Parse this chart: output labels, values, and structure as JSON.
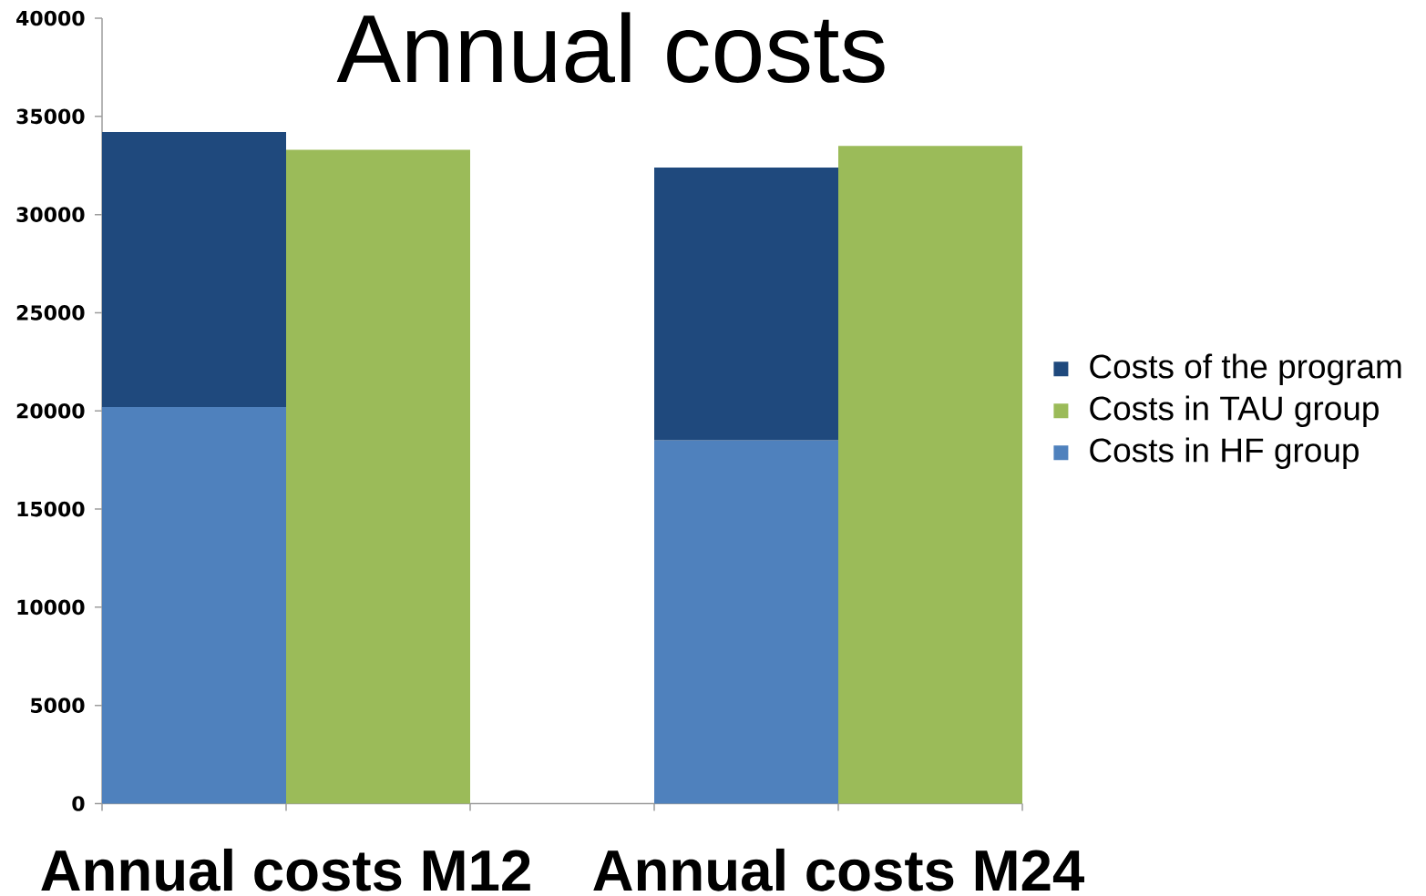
{
  "chart_data": {
    "type": "bar",
    "title": "Annual costs",
    "categories": [
      null,
      null,
      null,
      null,
      null
    ],
    "stacked": true,
    "series": [
      {
        "name": "Costs in HF group",
        "color": "#4f81bd",
        "values": [
          20200,
          null,
          null,
          18500,
          null
        ]
      },
      {
        "name": "Costs in TAU group",
        "color": "#9bbb59",
        "values": [
          null,
          33300,
          null,
          null,
          33500
        ]
      },
      {
        "name": "Costs of the program",
        "color": "#1f497d",
        "values": [
          14000,
          null,
          null,
          13900,
          null
        ]
      }
    ],
    "ylim": [
      0,
      40000
    ],
    "yticks": [
      0,
      5000,
      10000,
      15000,
      20000,
      25000,
      30000,
      35000,
      40000
    ],
    "legend": "right",
    "annotations": [
      "Annual costs M12",
      "Annual costs M24"
    ]
  }
}
